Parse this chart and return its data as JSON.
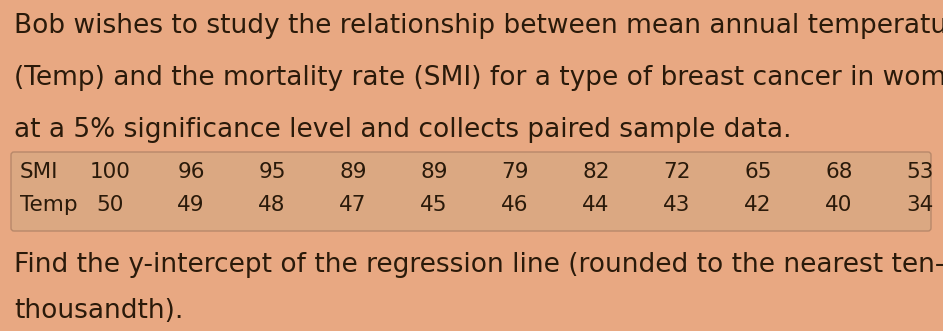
{
  "background_color": "#e8a882",
  "table_background": "#dba882",
  "table_border_color": "#b8886a",
  "text_color": "#2a1a0a",
  "paragraph1": "Bob wishes to study the relationship between mean annual temperature",
  "paragraph2": "(Temp) and the mortality rate (SMI) for a type of breast cancer in women",
  "paragraph3": "at a 5% significance level and collects paired sample data.",
  "paragraph4": "Find the y-intercept of the regression line (rounded to the nearest ten-",
  "paragraph5": "thousandth).",
  "smi_label": "SMI",
  "temp_label": "Temp",
  "smi_values": [
    100,
    96,
    95,
    89,
    89,
    79,
    82,
    72,
    65,
    68,
    53
  ],
  "temp_values": [
    50,
    49,
    48,
    47,
    45,
    46,
    44,
    43,
    42,
    40,
    34
  ],
  "font_size_body": 19,
  "font_size_table": 15.5
}
